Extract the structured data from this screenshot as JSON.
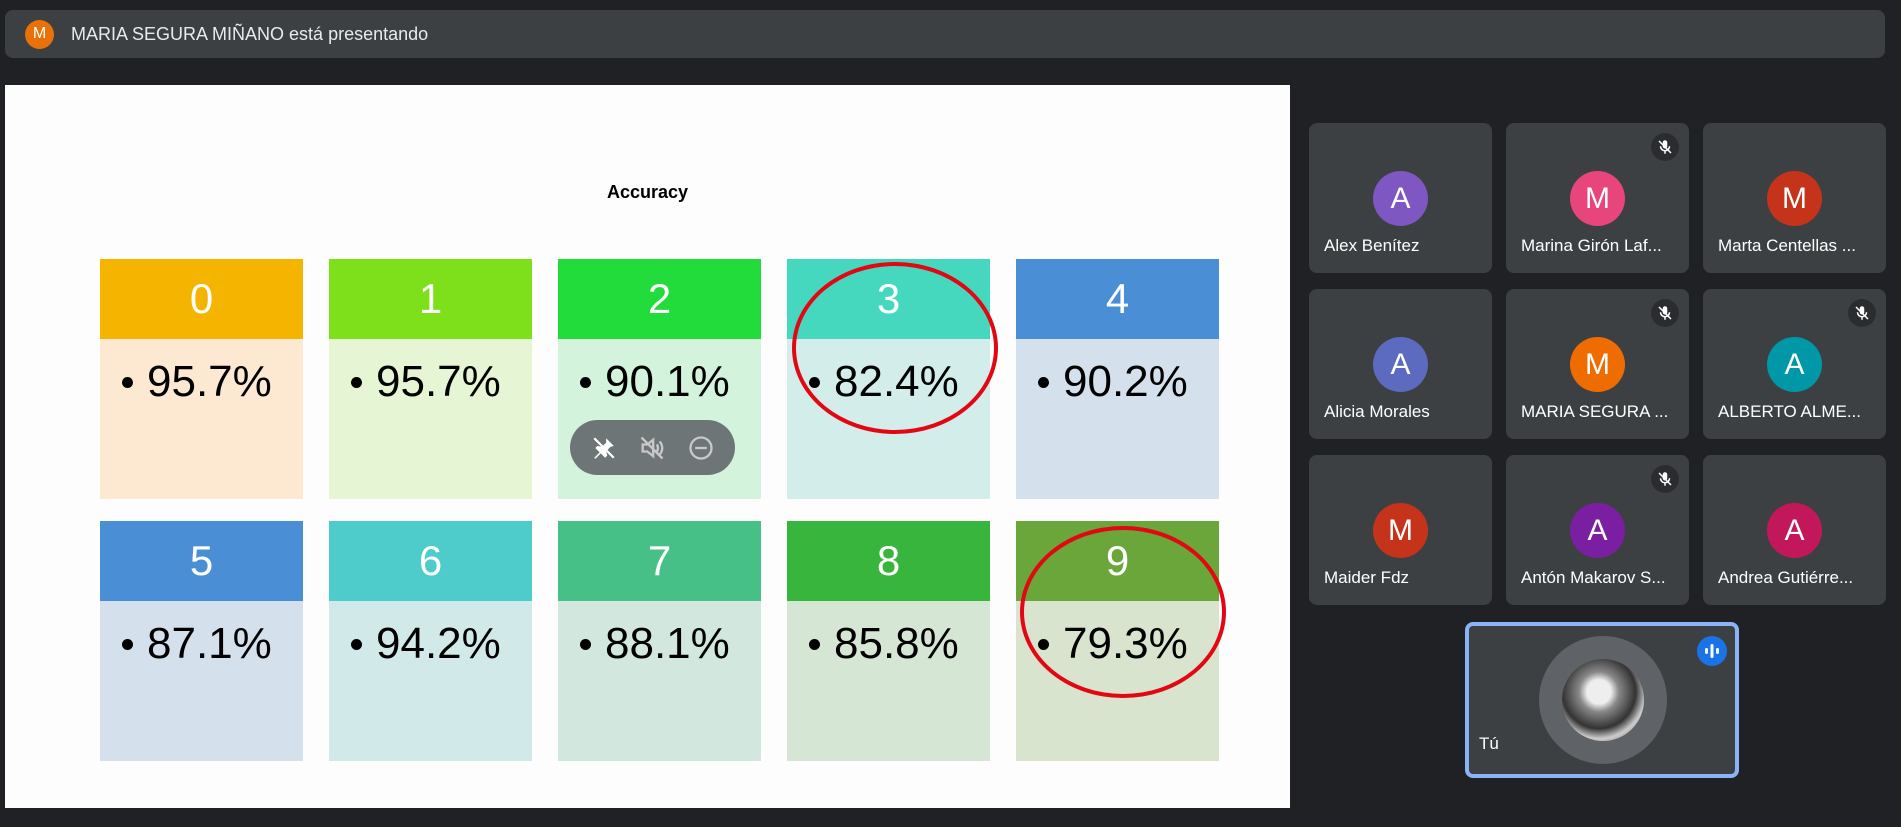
{
  "presenting_bar": {
    "avatar_letter": "M",
    "text": "MARIA SEGURA MIÑANO está presentando"
  },
  "slide": {
    "title": "Accuracy",
    "cards": [
      {
        "label": "0",
        "value": "95.7%",
        "header_color": "#f4b400",
        "body_color": "#fde9d2",
        "circled": false
      },
      {
        "label": "1",
        "value": "95.7%",
        "header_color": "#7ee01a",
        "body_color": "#e6f5d3",
        "circled": false
      },
      {
        "label": "2",
        "value": "90.1%",
        "header_color": "#22dc3c",
        "body_color": "#d4f3dc",
        "circled": false
      },
      {
        "label": "3",
        "value": "82.4%",
        "header_color": "#45d8bf",
        "body_color": "#d3eeea",
        "circled": true
      },
      {
        "label": "4",
        "value": "90.2%",
        "header_color": "#4a8fd6",
        "body_color": "#d5e0ed",
        "circled": false
      },
      {
        "label": "5",
        "value": "87.1%",
        "header_color": "#4a8fd6",
        "body_color": "#d5e0ed",
        "circled": false
      },
      {
        "label": "6",
        "value": "94.2%",
        "header_color": "#4ecbcb",
        "body_color": "#d2e9ea",
        "circled": false
      },
      {
        "label": "7",
        "value": "88.1%",
        "header_color": "#46c086",
        "body_color": "#d2e8de",
        "circled": false
      },
      {
        "label": "8",
        "value": "85.8%",
        "header_color": "#38b53c",
        "body_color": "#d6e6d4",
        "circled": false
      },
      {
        "label": "9",
        "value": "79.3%",
        "header_color": "#6aa63a",
        "body_color": "#d9e4cf",
        "circled": true
      }
    ]
  },
  "tile_controls": [
    "pin-icon",
    "mute-speaker-icon",
    "remove-icon"
  ],
  "participants": [
    {
      "name": "Alex Benítez",
      "letter": "A",
      "color": "#7e57c2",
      "muted": false
    },
    {
      "name": "Marina Girón Laf...",
      "letter": "M",
      "color": "#e8457c",
      "muted": true
    },
    {
      "name": "Marta Centellas ...",
      "letter": "M",
      "color": "#c5341a",
      "muted": false
    },
    {
      "name": "Alicia Morales",
      "letter": "A",
      "color": "#5c6bc0",
      "muted": false
    },
    {
      "name": "MARIA SEGURA ...",
      "letter": "M",
      "color": "#ef6c00",
      "muted": true
    },
    {
      "name": "ALBERTO ALME...",
      "letter": "A",
      "color": "#0097a7",
      "muted": true
    },
    {
      "name": "Maider Fdz",
      "letter": "M",
      "color": "#c5341a",
      "muted": false
    },
    {
      "name": "Antón Makarov S...",
      "letter": "A",
      "color": "#7b1fa2",
      "muted": true
    },
    {
      "name": "Andrea Gutiérre...",
      "letter": "A",
      "color": "#c2185b",
      "muted": false
    }
  ],
  "self_tile": {
    "name": "Tú"
  }
}
